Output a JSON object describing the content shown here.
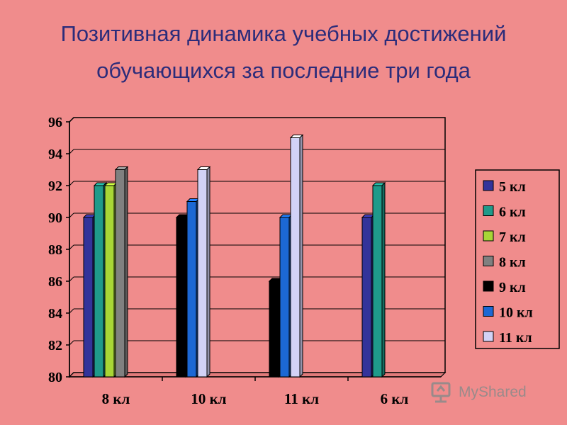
{
  "title": {
    "line1": "Позитивная динамика учебных достижений",
    "line2": "обучающихся  за последние  три года"
  },
  "watermark": {
    "text": "MyShared",
    "icon": "myshared-logo-icon"
  },
  "chart_data": {
    "type": "bar",
    "categories": [
      "8 кл",
      "10 кл",
      "11 кл",
      "6 кл"
    ],
    "ylim": [
      80,
      96
    ],
    "yticks": [
      80,
      82,
      84,
      86,
      88,
      90,
      92,
      94,
      96
    ],
    "grid": true,
    "legend_position": "right",
    "series": [
      {
        "name": "5 кл",
        "color": "#33339a",
        "values": [
          90,
          null,
          null,
          90
        ]
      },
      {
        "name": "6 кл",
        "color": "#1f9a8a",
        "values": [
          92,
          null,
          null,
          92
        ]
      },
      {
        "name": "7 кл",
        "color": "#a8d636",
        "values": [
          92,
          null,
          null,
          null
        ]
      },
      {
        "name": "8 кл",
        "color": "#808080",
        "values": [
          93,
          null,
          null,
          null
        ]
      },
      {
        "name": "9 кл",
        "color": "#000000",
        "values": [
          null,
          90,
          86,
          null
        ]
      },
      {
        "name": "10 кл",
        "color": "#1c68d4",
        "values": [
          null,
          91,
          90,
          null
        ]
      },
      {
        "name": "11 кл",
        "color": "#d2d2f6",
        "values": [
          null,
          93,
          95,
          null
        ]
      }
    ]
  }
}
